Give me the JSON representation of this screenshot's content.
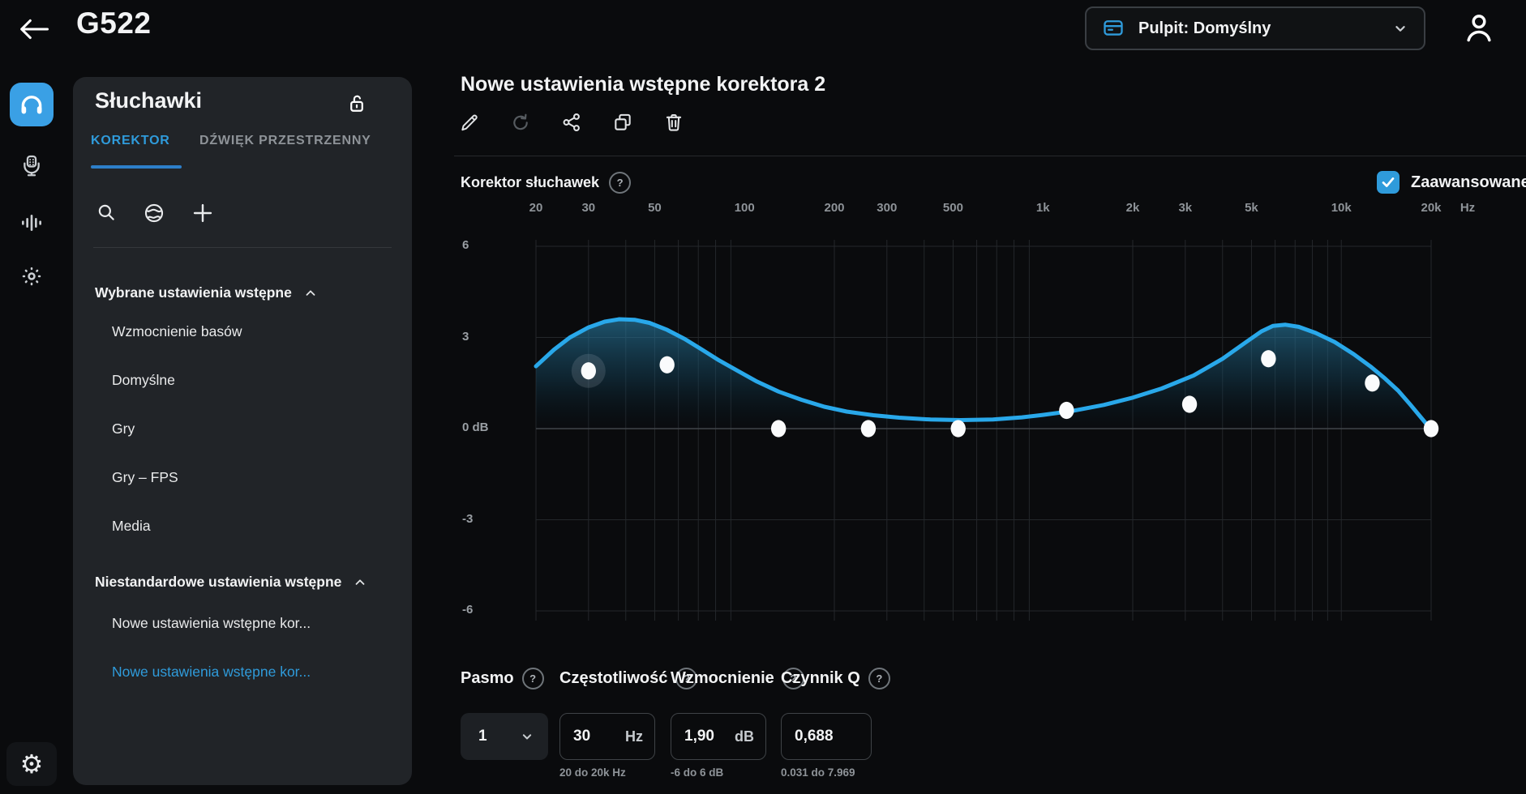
{
  "topbar": {
    "title": "G522",
    "profile": {
      "label": "Pulpit: Domyślny"
    }
  },
  "rail": {
    "items": [
      {
        "name": "headset",
        "active": true
      },
      {
        "name": "microphone",
        "active": false
      },
      {
        "name": "equalizer",
        "active": false
      },
      {
        "name": "lighting",
        "active": false
      },
      {
        "name": "settings",
        "active": false
      }
    ]
  },
  "panel": {
    "title": "Słuchawki",
    "tabs": [
      {
        "label": "KOREKTOR",
        "active": true
      },
      {
        "label": "DŹWIĘK PRZESTRZENNY",
        "active": false
      }
    ],
    "sections": [
      {
        "title": "Wybrane ustawienia wstępne",
        "items": [
          "Wzmocnienie basów",
          "Domyślne",
          "Gry",
          "Gry – FPS",
          "Media"
        ],
        "selected_index": -1
      },
      {
        "title": "Niestandardowe ustawienia wstępne",
        "items": [
          "Nowe ustawienia wstępne kor...",
          "Nowe ustawienia wstępne kor..."
        ],
        "selected_index": 1
      }
    ]
  },
  "main": {
    "preset_title": "Nowe ustawienia wstępne korektora 2",
    "toolbar": [
      "edit",
      "reset",
      "share",
      "duplicate",
      "delete"
    ],
    "chart_label": "Korektor słuchawek",
    "advanced_label": "Zaawansowane",
    "advanced_checked": true
  },
  "chart_data": {
    "type": "line",
    "title": "Korektor słuchawek",
    "x_axis": {
      "scale": "log",
      "unit": "Hz",
      "min": 20,
      "max": 20000,
      "ticks": [
        {
          "f": 20,
          "label": "20"
        },
        {
          "f": 30,
          "label": "30"
        },
        {
          "f": 50,
          "label": "50"
        },
        {
          "f": 100,
          "label": "100"
        },
        {
          "f": 200,
          "label": "200"
        },
        {
          "f": 300,
          "label": "300"
        },
        {
          "f": 500,
          "label": "500"
        },
        {
          "f": 1000,
          "label": "1k"
        },
        {
          "f": 2000,
          "label": "2k"
        },
        {
          "f": 3000,
          "label": "3k"
        },
        {
          "f": 5000,
          "label": "5k"
        },
        {
          "f": 10000,
          "label": "10k"
        },
        {
          "f": 20000,
          "label": "20k"
        }
      ]
    },
    "y_axis": {
      "unit": "dB",
      "min": -6,
      "max": 6,
      "ticks": [
        {
          "v": 6,
          "label": "6"
        },
        {
          "v": 3,
          "label": "3"
        },
        {
          "v": 0,
          "label": "0 dB"
        },
        {
          "v": -3,
          "label": "-3"
        },
        {
          "v": -6,
          "label": "-6"
        }
      ]
    },
    "bands": [
      {
        "band": 1,
        "freq": 30,
        "gain_db": 1.9,
        "q": 0.688,
        "selected": true
      },
      {
        "band": 2,
        "freq": 55,
        "gain_db": 2.1,
        "selected": false
      },
      {
        "band": 3,
        "freq": 130,
        "gain_db": 0,
        "selected": false
      },
      {
        "band": 4,
        "freq": 260,
        "gain_db": 0,
        "selected": false
      },
      {
        "band": 5,
        "freq": 520,
        "gain_db": 0,
        "selected": false
      },
      {
        "band": 6,
        "freq": 1200,
        "gain_db": 0.6,
        "selected": false
      },
      {
        "band": 7,
        "freq": 3100,
        "gain_db": 0.8,
        "selected": false
      },
      {
        "band": 8,
        "freq": 5700,
        "gain_db": 2.3,
        "selected": false
      },
      {
        "band": 9,
        "freq": 12700,
        "gain_db": 1.5,
        "selected": false
      },
      {
        "band": 10,
        "freq": 20000,
        "gain_db": 0,
        "selected": false
      }
    ],
    "curve": [
      [
        20,
        2.05
      ],
      [
        23,
        2.6
      ],
      [
        26,
        3.0
      ],
      [
        30,
        3.33
      ],
      [
        34,
        3.52
      ],
      [
        38,
        3.6
      ],
      [
        43,
        3.58
      ],
      [
        48,
        3.48
      ],
      [
        55,
        3.25
      ],
      [
        63,
        2.95
      ],
      [
        72,
        2.6
      ],
      [
        82,
        2.25
      ],
      [
        95,
        1.9
      ],
      [
        110,
        1.55
      ],
      [
        130,
        1.22
      ],
      [
        155,
        0.95
      ],
      [
        185,
        0.72
      ],
      [
        220,
        0.56
      ],
      [
        270,
        0.44
      ],
      [
        330,
        0.36
      ],
      [
        420,
        0.3
      ],
      [
        530,
        0.28
      ],
      [
        680,
        0.3
      ],
      [
        850,
        0.37
      ],
      [
        1000,
        0.45
      ],
      [
        1250,
        0.58
      ],
      [
        1600,
        0.78
      ],
      [
        2000,
        1.02
      ],
      [
        2500,
        1.32
      ],
      [
        3200,
        1.75
      ],
      [
        4000,
        2.3
      ],
      [
        4800,
        2.85
      ],
      [
        5400,
        3.2
      ],
      [
        5900,
        3.38
      ],
      [
        6500,
        3.42
      ],
      [
        7200,
        3.35
      ],
      [
        8200,
        3.15
      ],
      [
        9500,
        2.85
      ],
      [
        11000,
        2.45
      ],
      [
        12500,
        2.05
      ],
      [
        14000,
        1.65
      ],
      [
        15500,
        1.25
      ],
      [
        17000,
        0.8
      ],
      [
        18200,
        0.45
      ],
      [
        19300,
        0.15
      ],
      [
        20000,
        0.02
      ]
    ],
    "colors": {
      "curve": "#29a8ea",
      "accent": "#2f9bdb",
      "grid": "#24272b",
      "zero_line": "#45494e"
    }
  },
  "controls": {
    "band": {
      "label": "Pasmo",
      "value": "1"
    },
    "frequency": {
      "label": "Częstotliwość",
      "value": "30",
      "unit": "Hz",
      "range": "20 do 20k Hz"
    },
    "gain": {
      "label": "Wzmocnienie",
      "value": "1,90",
      "unit": "dB",
      "range": "-6 do 6 dB"
    },
    "q": {
      "label": "Czynnik Q",
      "value": "0,688",
      "range": "0.031 do 7.969"
    }
  }
}
